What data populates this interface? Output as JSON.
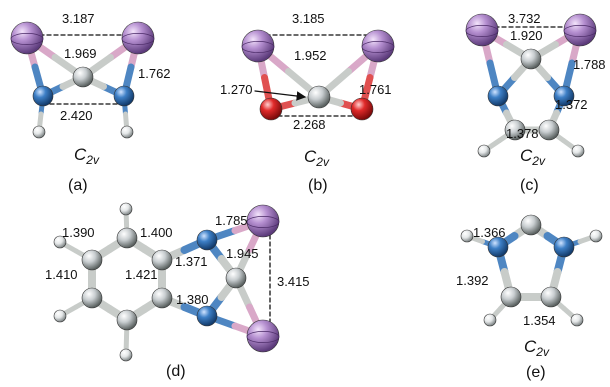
{
  "colors": {
    "metal": "#a77fbf",
    "nitrogen": "#2f6fb0",
    "oxygen": "#d42020",
    "carbon": "#c9cfd2",
    "hydrogen": "#e6e9ea",
    "bond_gray": "#c8ccc9",
    "bond_pink": "#d9a8c8",
    "bond_blue": "#4e86c2",
    "bond_red": "#e05050"
  },
  "panels": [
    {
      "id": "a",
      "caption": "(a)",
      "symmetry": "C",
      "sym_sub": "2v",
      "labels": [
        "3.187",
        "1.969",
        "1.762",
        "2.420"
      ]
    },
    {
      "id": "b",
      "caption": "(b)",
      "symmetry": "C",
      "sym_sub": "2v",
      "labels": [
        "3.185",
        "1.952",
        "1.270",
        "1.761",
        "2.268"
      ]
    },
    {
      "id": "c",
      "caption": "(c)",
      "symmetry": "C",
      "sym_sub": "2v",
      "labels": [
        "3.732",
        "1.920",
        "1.788",
        "1.372",
        "1.378"
      ]
    },
    {
      "id": "d",
      "caption": "(d)",
      "labels": [
        "1.390",
        "1.400",
        "1.785",
        "1.410",
        "1.421",
        "1.371",
        "1.945",
        "3.415",
        "1.380"
      ]
    },
    {
      "id": "e",
      "caption": "(e)",
      "symmetry": "C",
      "sym_sub": "2v",
      "labels": [
        "1.366",
        "1.392",
        "1.354"
      ]
    }
  ]
}
